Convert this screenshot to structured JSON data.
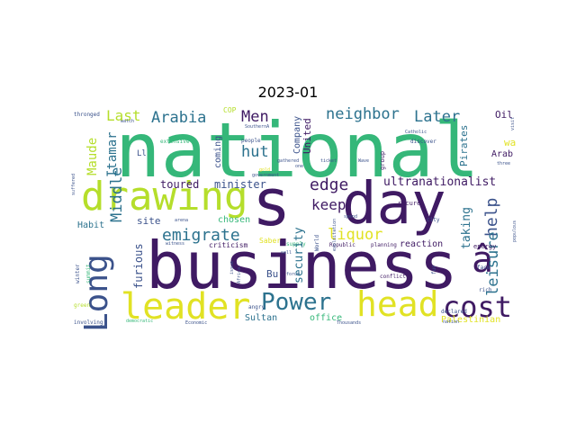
{
  "title": "2023-01",
  "colors": {
    "purple": "#3f1a63",
    "green": "#35b779",
    "yellow": "#e1e224",
    "teal": "#2c728e",
    "lime": "#b5de2b",
    "blue": "#3b528b"
  },
  "words": {
    "national": "national",
    "business": "business",
    "day": "day",
    "s": "s",
    "drawing": "drawing",
    "leader": "leader",
    "head": "head",
    "long": "Long",
    "cost": "cost",
    "power": "Power",
    "a_circ": "â",
    "arabia": "Arabia",
    "men": "Men",
    "neighbor": "neighbor",
    "later": "Later",
    "last": "Last",
    "keep": "keep",
    "edge": "edge",
    "emigrate": "emigrate",
    "liquor": "liquor",
    "help": "help",
    "leisure": "leisure",
    "middle": "Middle",
    "itamar": "Itamar",
    "maude": "Maude",
    "hut": "hut",
    "toured": "toured",
    "minister": "minister",
    "ultranationalist": "ultranationalist",
    "site": "site",
    "furious": "furious",
    "habit": "Habit",
    "chosen": "chosen",
    "security": "security",
    "taking": "taking",
    "reaction": "reaction",
    "arab": "Arab",
    "pirates": "Pirates",
    "united": "United",
    "company": "Company",
    "oil": "Oil",
    "wa": "wa",
    "ll": "Ll",
    "coming": "coming",
    "office": "office",
    "sultan": "Sultan",
    "palestinian": "Palestinian",
    "saber": "Saber",
    "bu": "Bu",
    "cop": "COP",
    "criticism": "criticism",
    "supply": "supply",
    "republic": "Republic",
    "planning": "planning",
    "energy": "energy",
    "secure": "secure",
    "group": "group",
    "conflict": "conflict",
    "declared": "declared",
    "thousands": "Thousands",
    "nation": "nation",
    "economic": "Economic",
    "involving": "involving",
    "green": "green",
    "angry": "angry",
    "extensive": "extensive",
    "people": "people",
    "discover": "discover",
    "catholic": "Catholic",
    "thronged": "thronged",
    "watch": "watch",
    "three": "three",
    "city": "city",
    "face": "face",
    "rich": "rich",
    "spend": "spend",
    "forum": "forum",
    "gathered": "gathered",
    "ticket": "ticket",
    "world": "World",
    "winter": "winter",
    "suffered": "suffered",
    "summit": "summit",
    "populous": "populous",
    "visit": "visit",
    "arena": "arena",
    "witness": "witness",
    "democratic": "democratic",
    "one": "one",
    "wave": "Wave",
    "gold": "gold",
    "government": "government",
    "sell": "sell",
    "southern": "SouthernA",
    "issue": "issue",
    "africa": "Africa",
    "exploitation": "exploitation",
    "fur": "fur"
  }
}
